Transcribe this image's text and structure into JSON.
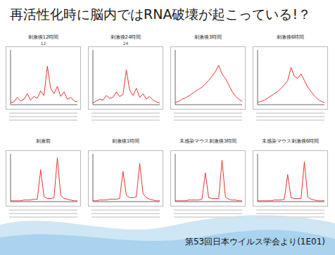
{
  "title": "再活性化時に脳内ではRNA破壊が起こっている!？",
  "footer": "第53回日本ウイルス学会より(1E01)",
  "chart_data": [
    {
      "type": "line",
      "title": "刺激後12時間",
      "subtitle": "12",
      "x": [
        19,
        21.5,
        24,
        26.5,
        29,
        31.5,
        34,
        36.5,
        39,
        41.5,
        44,
        46.5,
        49,
        51.5,
        54,
        56.5,
        59,
        61.5,
        64,
        66.5,
        69
      ],
      "series": [
        {
          "color": "#e8342f",
          "values": [
            2,
            3,
            8,
            4,
            6,
            12,
            5,
            9,
            7,
            15,
            10,
            42,
            18,
            12,
            20,
            9,
            14,
            6,
            8,
            4,
            3
          ]
        }
      ],
      "xlim": [
        19,
        69
      ],
      "ylim": [
        0,
        60
      ],
      "tick_labels": false
    },
    {
      "type": "line",
      "title": "刺激後24時間",
      "subtitle": "24",
      "x": [
        19,
        21.5,
        24,
        26.5,
        29,
        31.5,
        34,
        36.5,
        39,
        41.5,
        44,
        46.5,
        49,
        51.5,
        54,
        56.5,
        59,
        61.5,
        64,
        66.5,
        69
      ],
      "series": [
        {
          "color": "#e8342f",
          "values": [
            2,
            4,
            6,
            5,
            10,
            7,
            8,
            14,
            9,
            11,
            38,
            16,
            10,
            18,
            8,
            12,
            6,
            9,
            5,
            3,
            2
          ]
        }
      ],
      "xlim": [
        19,
        69
      ],
      "ylim": [
        0,
        60
      ],
      "tick_labels": false
    },
    {
      "type": "line",
      "title": "刺激後3時間",
      "x": [
        19,
        21.5,
        24,
        26.5,
        29,
        31.5,
        34,
        36.5,
        39,
        41.5,
        44,
        46.5,
        49,
        51.5,
        54,
        56.5,
        59,
        61.5,
        64,
        66.5,
        69
      ],
      "series": [
        {
          "color": "#e8342f",
          "values": [
            2,
            3,
            5,
            6,
            8,
            10,
            12,
            14,
            16,
            19,
            22,
            26,
            30,
            36,
            28,
            24,
            18,
            12,
            8,
            5,
            3
          ]
        }
      ],
      "xlim": [
        19,
        69
      ],
      "ylim": [
        0,
        50
      ],
      "tick_labels": false
    },
    {
      "type": "line",
      "title": "刺激後6時間",
      "x": [
        19,
        21.5,
        24,
        26.5,
        29,
        31.5,
        34,
        36.5,
        39,
        41.5,
        44,
        46.5,
        49,
        51.5,
        54,
        56.5,
        59,
        61.5,
        64,
        66.5,
        69
      ],
      "series": [
        {
          "color": "#e8342f",
          "values": [
            2,
            3,
            4,
            6,
            8,
            10,
            12,
            15,
            18,
            22,
            34,
            26,
            24,
            28,
            22,
            16,
            12,
            8,
            5,
            3,
            2
          ]
        }
      ],
      "xlim": [
        19,
        69
      ],
      "ylim": [
        0,
        50
      ],
      "tick_labels": false
    },
    {
      "type": "line",
      "title": "刺激前",
      "x": [
        19,
        21.5,
        24,
        26.5,
        29,
        31.5,
        34,
        36.5,
        39,
        41.5,
        44,
        46.5,
        49,
        51.5,
        54,
        56.5,
        59,
        61.5,
        64,
        66.5,
        69
      ],
      "series": [
        {
          "color": "#e8342f",
          "values": [
            1,
            1,
            1,
            1,
            2,
            2,
            2,
            3,
            3,
            40,
            6,
            4,
            4,
            5,
            55,
            8,
            4,
            3,
            2,
            1,
            1
          ]
        }
      ],
      "xlim": [
        19,
        69
      ],
      "ylim": [
        0,
        60
      ],
      "tick_labels": false
    },
    {
      "type": "line",
      "title": "刺激後1時間",
      "x": [
        19,
        21.5,
        24,
        26.5,
        29,
        31.5,
        34,
        36.5,
        39,
        41.5,
        44,
        46.5,
        49,
        51.5,
        54,
        56.5,
        59,
        61.5,
        64,
        66.5,
        69
      ],
      "series": [
        {
          "color": "#e8342f",
          "values": [
            1,
            1,
            2,
            2,
            2,
            3,
            3,
            3,
            4,
            38,
            8,
            5,
            5,
            6,
            48,
            10,
            5,
            3,
            2,
            1,
            1
          ]
        }
      ],
      "xlim": [
        19,
        69
      ],
      "ylim": [
        0,
        60
      ],
      "tick_labels": false
    },
    {
      "type": "line",
      "title": "未感染マウス刺激後3時間",
      "x": [
        19,
        21.5,
        24,
        26.5,
        29,
        31.5,
        34,
        36.5,
        39,
        41.5,
        44,
        46.5,
        49,
        51.5,
        54,
        56.5,
        59,
        61.5,
        64,
        66.5,
        69
      ],
      "series": [
        {
          "color": "#e8342f",
          "values": [
            1,
            1,
            1,
            1,
            2,
            2,
            2,
            2,
            3,
            36,
            5,
            4,
            4,
            4,
            52,
            6,
            3,
            2,
            2,
            1,
            1
          ]
        }
      ],
      "xlim": [
        19,
        69
      ],
      "ylim": [
        0,
        60
      ],
      "tick_labels": false
    },
    {
      "type": "line",
      "title": "未感染マウス刺激後6時間",
      "x": [
        19,
        21.5,
        24,
        26.5,
        29,
        31.5,
        34,
        36.5,
        39,
        41.5,
        44,
        46.5,
        49,
        51.5,
        54,
        56.5,
        59,
        61.5,
        64,
        66.5,
        69
      ],
      "series": [
        {
          "color": "#e8342f",
          "values": [
            1,
            1,
            1,
            1,
            1,
            2,
            2,
            2,
            3,
            34,
            5,
            4,
            4,
            4,
            50,
            6,
            3,
            2,
            1,
            1,
            1
          ]
        }
      ],
      "xlim": [
        19,
        69
      ],
      "ylim": [
        0,
        60
      ],
      "tick_labels": false
    }
  ]
}
